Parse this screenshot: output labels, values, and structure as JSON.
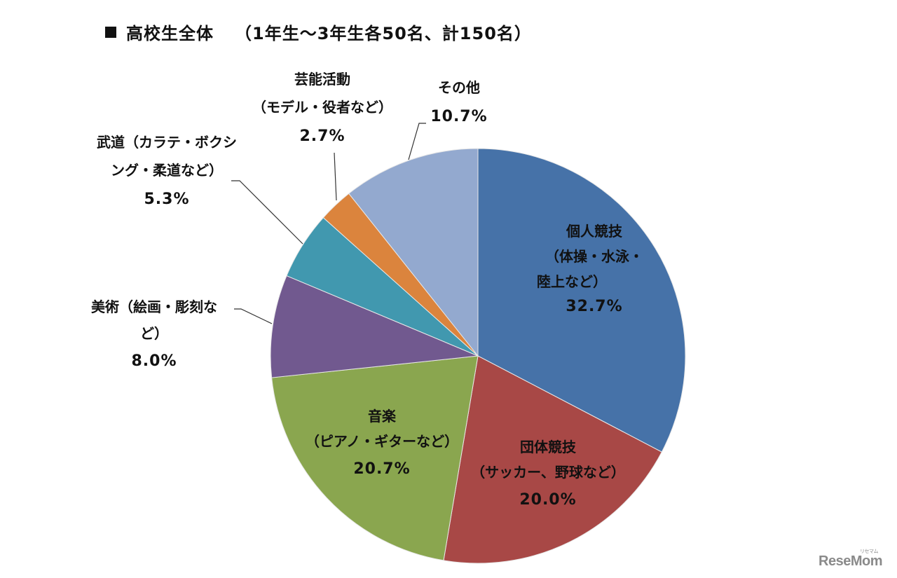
{
  "title": {
    "marker": "■",
    "main": "高校生全体",
    "subtitle": "（1年生～3年生各50名、計150名）"
  },
  "chart_data": {
    "type": "pie",
    "title": "高校生全体 （1年生～3年生各50名、計150名）",
    "start_angle_deg": 0,
    "direction": "clockwise",
    "slices": [
      {
        "name": "個人競技",
        "detail": "（体操・水泳・陸上など）",
        "value": 32.7,
        "label": "32.7%",
        "color": "#4672A8"
      },
      {
        "name": "団体競技",
        "detail": "（サッカー、野球など）",
        "value": 20.0,
        "label": "20.0%",
        "color": "#A84846"
      },
      {
        "name": "音楽",
        "detail": "（ピアノ・ギターなど）",
        "value": 20.7,
        "label": "20.7%",
        "color": "#8AA64F"
      },
      {
        "name": "美術",
        "detail": "（絵画・彫刻など）",
        "value": 8.0,
        "label": "8.0%",
        "color": "#71598F"
      },
      {
        "name": "武道",
        "detail": "（カラテ・ボクシング・柔道など）",
        "value": 5.3,
        "label": "5.3%",
        "color": "#4198AF"
      },
      {
        "name": "芸能活動",
        "detail": "（モデル・役者など）",
        "value": 2.7,
        "label": "2.7%",
        "color": "#DB843D"
      },
      {
        "name": "その他",
        "detail": "",
        "value": 10.7,
        "label": "10.7%",
        "color": "#93A9CF"
      }
    ]
  },
  "labels": {
    "kojin": {
      "line1": "個人競技",
      "line2": "（体操・水泳・",
      "line3": "陸上など）",
      "pct": "32.7%"
    },
    "dantai": {
      "line1": "団体競技",
      "line2": "（サッカー、野球など）",
      "pct": "20.0%"
    },
    "ongaku": {
      "line1": "音楽",
      "line2": "（ピアノ・ギターなど）",
      "pct": "20.7%"
    },
    "bijutsu": {
      "line1": "美術（絵画・彫刻な",
      "line2": "ど）",
      "pct": "8.0%"
    },
    "budo": {
      "line1": "武道（カラテ・ボクシ",
      "line2": "ング・柔道など）",
      "pct": "5.3%"
    },
    "geino": {
      "line1": "芸能活動",
      "line2": "（モデル・役者など）",
      "pct": "2.7%"
    },
    "sonota": {
      "line1": "その他",
      "pct": "10.7%"
    }
  },
  "watermark": {
    "text": "ReseMom",
    "kana": "リセマム"
  }
}
